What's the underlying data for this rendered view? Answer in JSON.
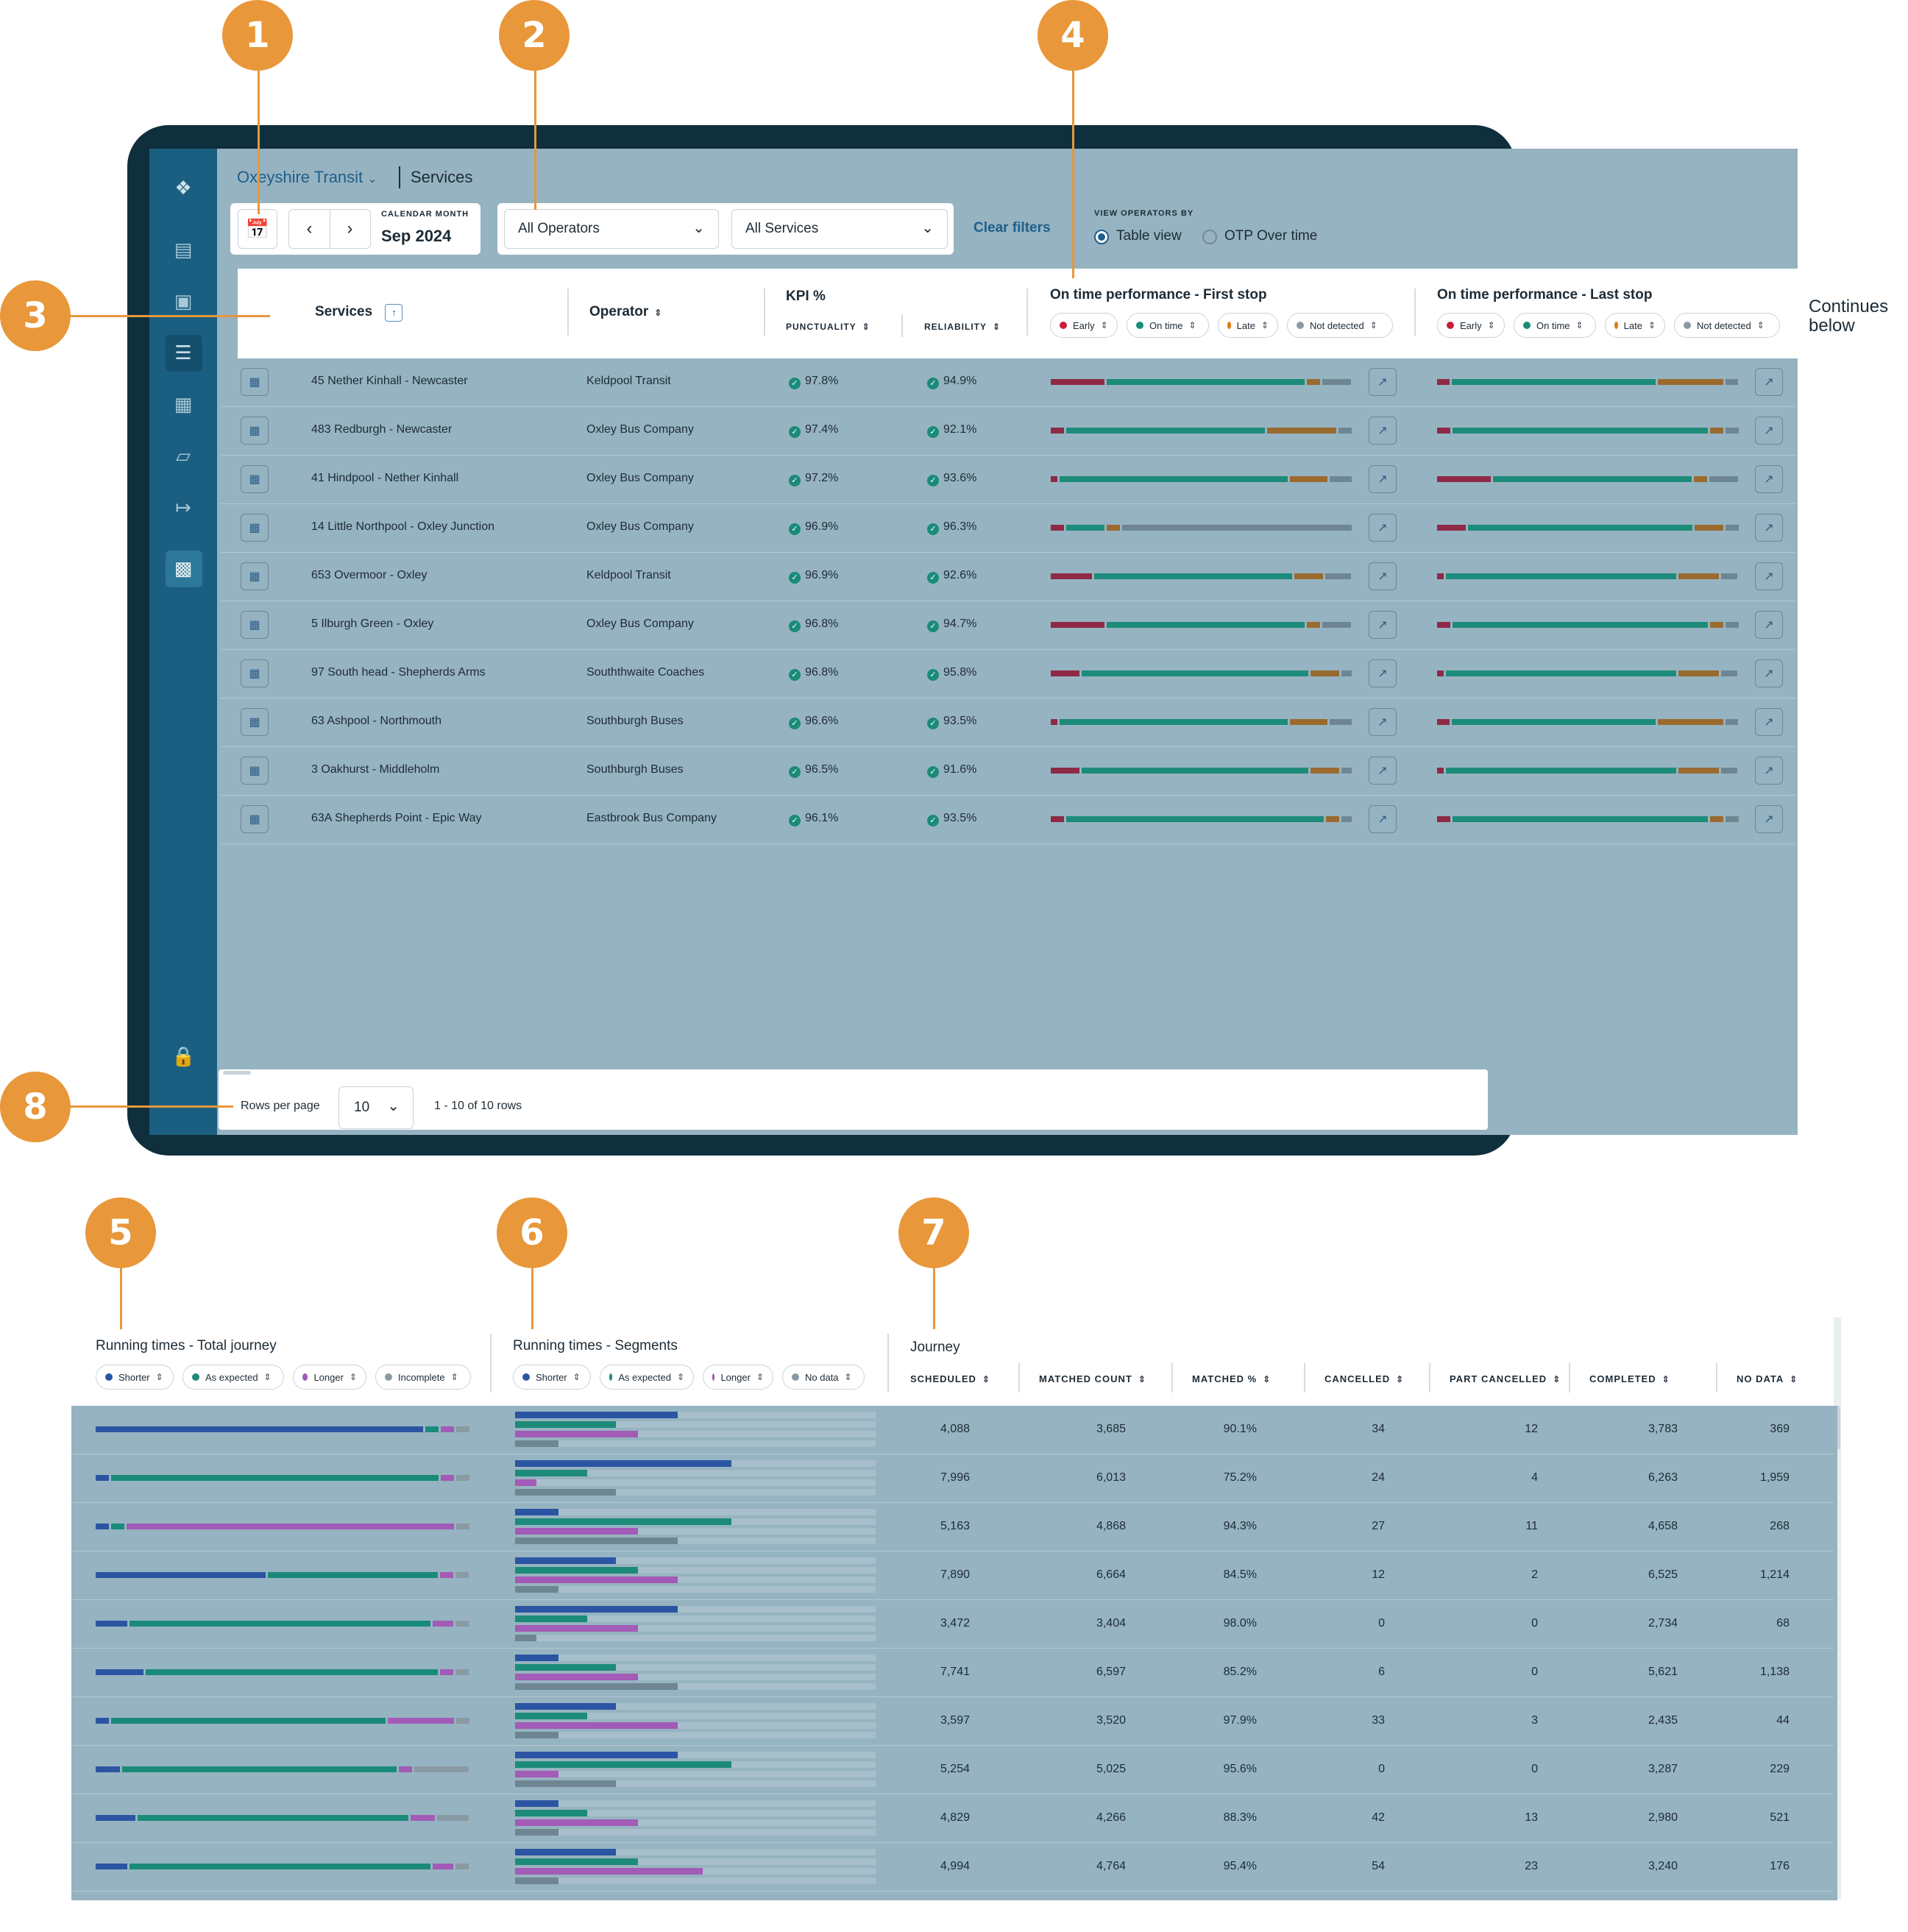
{
  "colors": {
    "accent": "#e8973a",
    "early": "#c81e3c",
    "ontime": "#1a8b78",
    "late": "#e07b12",
    "notdetected": "#8a9aa3",
    "bar_early": "#8e2a45",
    "bar_ontime": "#1d8b79",
    "bar_late": "#9a6a2f",
    "bar_nd": "#6e8692",
    "shorter": "#2b55a3",
    "longer": "#a25bb6"
  },
  "callouts": [
    "1",
    "2",
    "3",
    "4",
    "5",
    "6",
    "7",
    "8"
  ],
  "continues": "Continues below",
  "breadcrumb": {
    "org": "Oxeyshire Transit",
    "page": "Services"
  },
  "filters": {
    "calendar_caption": "CALENDAR MONTH",
    "month": "Sep 2024",
    "operators": "All Operators",
    "services": "All Services",
    "clear": "Clear filters",
    "view_caption": "VIEW OPERATORS BY",
    "view_table": "Table view",
    "view_otp": "OTP Over time"
  },
  "table": {
    "headers": {
      "services": "Services",
      "operator": "Operator",
      "kpi": "KPI %",
      "punctuality": "PUNCTUALITY",
      "reliability": "RELIABILITY",
      "otp_first": "On time performance - First stop",
      "otp_last": "On time performance - Last stop"
    },
    "legend": [
      "Early",
      "On time",
      "Late",
      "Not detected"
    ],
    "rows": [
      {
        "service": "45 Nether Kinhall - Newcaster",
        "operator": "Keldpool Transit",
        "punctuality": "97.8%",
        "reliability": "94.9%",
        "first": [
          0.18,
          0.64,
          0.05,
          0.1
        ],
        "last": [
          0.05,
          0.7,
          0.23,
          0.05
        ]
      },
      {
        "service": "483 Redburgh - Newcaster",
        "operator": "Oxley Bus Company",
        "punctuality": "97.4%",
        "reliability": "92.1%",
        "first": [
          0.05,
          0.65,
          0.23,
          0.05
        ],
        "last": [
          0.05,
          0.84,
          0.05,
          0.05
        ]
      },
      {
        "service": "41 Hindpool - Nether Kinhall",
        "operator": "Oxley Bus Company",
        "punctuality": "97.2%",
        "reliability": "93.6%",
        "first": [
          0.03,
          0.76,
          0.13,
          0.08
        ],
        "last": [
          0.18,
          0.65,
          0.05,
          0.1
        ]
      },
      {
        "service": "14 Little Northpool - Oxley Junction",
        "operator": "Oxley Bus Company",
        "punctuality": "96.9%",
        "reliability": "96.3%",
        "first": [
          0.05,
          0.13,
          0.05,
          0.75
        ],
        "last": [
          0.1,
          0.74,
          0.1,
          0.05
        ]
      },
      {
        "service": "653 Overmoor - Oxley",
        "operator": "Keldpool Transit",
        "punctuality": "96.9%",
        "reliability": "92.6%",
        "first": [
          0.14,
          0.64,
          0.1,
          0.09
        ],
        "last": [
          0.03,
          0.76,
          0.14,
          0.06
        ]
      },
      {
        "service": "5 Ilburgh Green - Oxley",
        "operator": "Oxley Bus Company",
        "punctuality": "96.8%",
        "reliability": "94.7%",
        "first": [
          0.18,
          0.64,
          0.05,
          0.1
        ],
        "last": [
          0.05,
          0.84,
          0.05,
          0.05
        ]
      },
      {
        "service": "97 South head - Shepherds Arms",
        "operator": "Souththwaite Coaches",
        "punctuality": "96.8%",
        "reliability": "95.8%",
        "first": [
          0.1,
          0.74,
          0.1,
          0.04
        ],
        "last": [
          0.03,
          0.76,
          0.14,
          0.06
        ]
      },
      {
        "service": "63 Ashpool - Northmouth",
        "operator": "Southburgh Buses",
        "punctuality": "96.6%",
        "reliability": "93.5%",
        "first": [
          0.03,
          0.76,
          0.13,
          0.08
        ],
        "last": [
          0.05,
          0.7,
          0.23,
          0.05
        ]
      },
      {
        "service": "3 Oakhurst - Middleholm",
        "operator": "Southburgh Buses",
        "punctuality": "96.5%",
        "reliability": "91.6%",
        "first": [
          0.1,
          0.74,
          0.1,
          0.04
        ],
        "last": [
          0.03,
          0.76,
          0.14,
          0.06
        ]
      },
      {
        "service": "63A Shepherds Point - Epic Way",
        "operator": "Eastbrook Bus Company",
        "punctuality": "96.1%",
        "reliability": "93.5%",
        "first": [
          0.05,
          0.84,
          0.05,
          0.04
        ],
        "last": [
          0.05,
          0.84,
          0.05,
          0.05
        ]
      }
    ]
  },
  "footer": {
    "rows_label": "Rows per page",
    "rows_value": "10",
    "range": "1 - 10 of 10 rows"
  },
  "bottom": {
    "rt_total": "Running times - Total journey",
    "rt_segments": "Running times - Segments",
    "journey": "Journey",
    "rt_total_legend": [
      "Shorter",
      "As expected",
      "Longer",
      "Incomplete"
    ],
    "rt_segments_legend": [
      "Shorter",
      "As expected",
      "Longer",
      "No data"
    ],
    "journey_cols": [
      "SCHEDULED",
      "MATCHED COUNT",
      "MATCHED %",
      "CANCELLED",
      "PART CANCELLED",
      "COMPLETED",
      "NO DATA"
    ],
    "rows": [
      {
        "total": [
          0.87,
          0.04,
          0.04,
          0.04
        ],
        "seg": [
          0.45,
          0.28,
          0.34,
          0.12
        ],
        "j": [
          "4,088",
          "3,685",
          "90.1%",
          "34",
          "12",
          "3,783",
          "369"
        ]
      },
      {
        "total": [
          0.04,
          0.87,
          0.04,
          0.04
        ],
        "seg": [
          0.6,
          0.2,
          0.06,
          0.28
        ],
        "j": [
          "7,996",
          "6,013",
          "75.2%",
          "24",
          "4",
          "6,263",
          "1,959"
        ]
      },
      {
        "total": [
          0.04,
          0.04,
          0.87,
          0.04
        ],
        "seg": [
          0.12,
          0.6,
          0.34,
          0.45
        ],
        "j": [
          "5,163",
          "4,868",
          "94.3%",
          "27",
          "11",
          "4,658",
          "268"
        ]
      },
      {
        "total": [
          0.45,
          0.45,
          0.04,
          0.04
        ],
        "seg": [
          0.28,
          0.34,
          0.45,
          0.12
        ],
        "j": [
          "7,890",
          "6,664",
          "84.5%",
          "12",
          "2",
          "6,525",
          "1,214"
        ]
      },
      {
        "total": [
          0.09,
          0.8,
          0.06,
          0.04
        ],
        "seg": [
          0.45,
          0.2,
          0.34,
          0.06
        ],
        "j": [
          "3,472",
          "3,404",
          "98.0%",
          "0",
          "0",
          "2,734",
          "68"
        ]
      },
      {
        "total": [
          0.13,
          0.76,
          0.04,
          0.04
        ],
        "seg": [
          0.12,
          0.28,
          0.34,
          0.45
        ],
        "j": [
          "7,741",
          "6,597",
          "85.2%",
          "6",
          "0",
          "5,621",
          "1,138"
        ]
      },
      {
        "total": [
          0.04,
          0.73,
          0.18,
          0.04
        ],
        "seg": [
          0.28,
          0.2,
          0.45,
          0.12
        ],
        "j": [
          "3,597",
          "3,520",
          "97.9%",
          "33",
          "3",
          "2,435",
          "44"
        ]
      },
      {
        "total": [
          0.07,
          0.73,
          0.04,
          0.15
        ],
        "seg": [
          0.45,
          0.6,
          0.12,
          0.28
        ],
        "j": [
          "5,254",
          "5,025",
          "95.6%",
          "0",
          "0",
          "3,287",
          "229"
        ]
      },
      {
        "total": [
          0.11,
          0.72,
          0.07,
          0.09
        ],
        "seg": [
          0.12,
          0.2,
          0.34,
          0.12
        ],
        "j": [
          "4,829",
          "4,266",
          "88.3%",
          "42",
          "13",
          "2,980",
          "521"
        ]
      },
      {
        "total": [
          0.09,
          0.8,
          0.06,
          0.04
        ],
        "seg": [
          0.28,
          0.34,
          0.52,
          0.12
        ],
        "j": [
          "4,994",
          "4,764",
          "95.4%",
          "54",
          "23",
          "3,240",
          "176"
        ]
      }
    ]
  }
}
